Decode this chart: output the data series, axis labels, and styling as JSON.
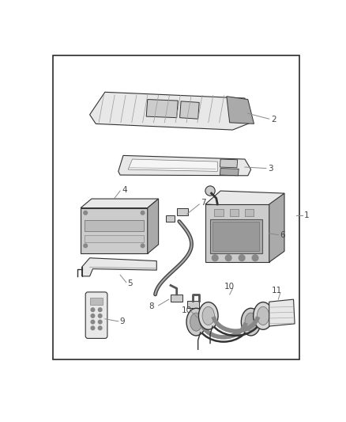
{
  "background_color": "#ffffff",
  "border_color": "#2a2a2a",
  "border_linewidth": 1.2,
  "fig_width": 4.38,
  "fig_height": 5.33,
  "dpi": 100,
  "label_fontsize": 7.5,
  "label_color": "#444444",
  "line_color": "#888888",
  "part_edge_color": "#333333",
  "part_fill_light": "#e8e8e8",
  "part_fill_mid": "#cccccc",
  "part_fill_dark": "#aaaaaa"
}
